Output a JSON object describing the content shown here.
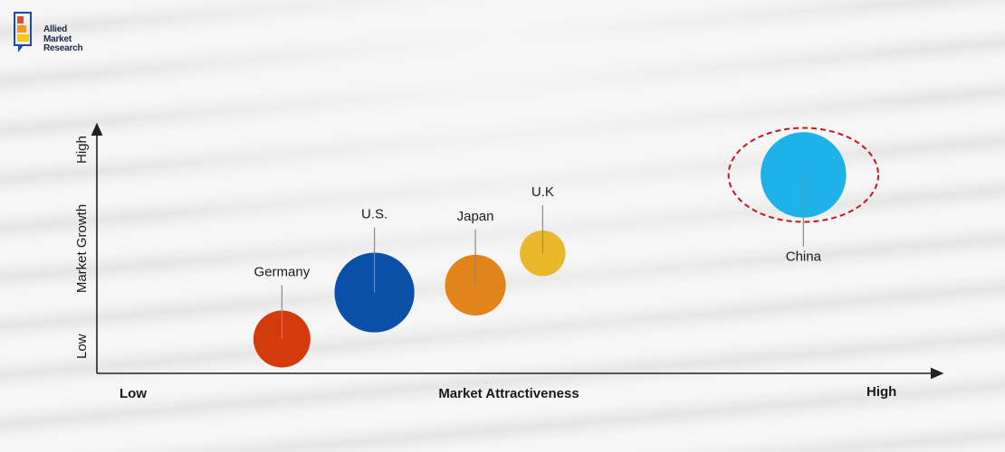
{
  "brand": {
    "lines": [
      "Allied",
      "Market",
      "Research"
    ],
    "colors": [
      "#e8492b",
      "#f39a1e",
      "#f5c518",
      "#1e4aa6"
    ]
  },
  "chart_data": {
    "type": "bubble",
    "xlabel": "Market Attractiveness",
    "ylabel": "Market Growth",
    "x_low_label": "Low",
    "x_high_label": "High",
    "y_low_label": "Low",
    "y_high_label": "High",
    "series": [
      {
        "name": "Germany",
        "x": 0.22,
        "y": 0.14,
        "size": 0.3,
        "color": "#d33a0c"
      },
      {
        "name": "U.S.",
        "x": 0.33,
        "y": 0.33,
        "size": 0.42,
        "color": "#0a4fa8"
      },
      {
        "name": "Japan",
        "x": 0.45,
        "y": 0.36,
        "size": 0.32,
        "color": "#e2841a"
      },
      {
        "name": "U.K",
        "x": 0.53,
        "y": 0.49,
        "size": 0.24,
        "color": "#e9b72a"
      },
      {
        "name": "China",
        "x": 0.84,
        "y": 0.81,
        "size": 0.45,
        "color": "#1fb2e8",
        "highlighted": true
      }
    ],
    "highlight_color": "#c0191f"
  }
}
